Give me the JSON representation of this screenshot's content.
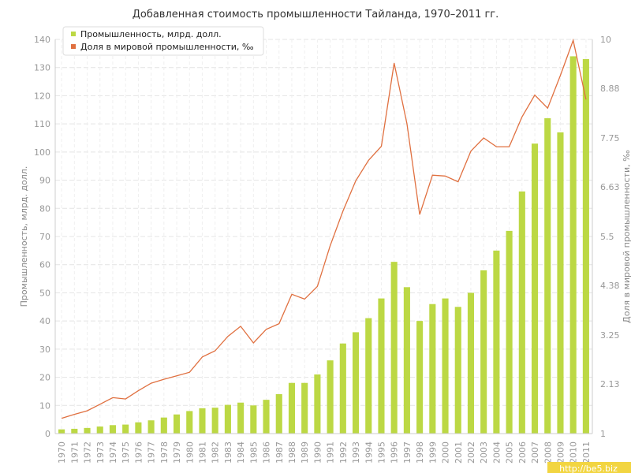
{
  "chart_data": {
    "type": "bar",
    "title": "Добавленная стоимость промышленности Тайланда, 1970–2011 гг.",
    "ylabel_left": "Промышленность, млрд. долл.",
    "ylabel_right": "Доля в мировой промышленности, ‰",
    "ylim_left": [
      0,
      140
    ],
    "yticks_left": [
      "0",
      "10",
      "20",
      "30",
      "40",
      "50",
      "60",
      "70",
      "80",
      "90",
      "100",
      "110",
      "120",
      "130",
      "140"
    ],
    "ylim_right": [
      1,
      10
    ],
    "yticks_right": [
      "1",
      "2.13",
      "3.25",
      "4.38",
      "5.5",
      "6.63",
      "7.75",
      "8.88",
      "10"
    ],
    "grid": true,
    "legend_position": "top-left",
    "categories": [
      "1970",
      "1971",
      "1972",
      "1973",
      "1974",
      "1975",
      "1976",
      "1977",
      "1978",
      "1979",
      "1980",
      "1981",
      "1982",
      "1983",
      "1984",
      "1985",
      "1986",
      "1987",
      "1988",
      "1989",
      "1990",
      "1991",
      "1992",
      "1993",
      "1994",
      "1995",
      "1996",
      "1997",
      "1998",
      "1999",
      "2000",
      "2001",
      "2002",
      "2003",
      "2004",
      "2005",
      "2006",
      "2007",
      "2008",
      "2009",
      "2010",
      "2011"
    ],
    "series": [
      {
        "name": "Промышленность, млрд. долл.",
        "kind": "bar",
        "axis": "left",
        "color": "#bcd844",
        "values": [
          1.5,
          1.7,
          2.0,
          2.5,
          3.0,
          3.2,
          4.0,
          4.7,
          5.7,
          6.8,
          8.0,
          9.0,
          9.2,
          10.2,
          11.0,
          10.0,
          12.0,
          14.0,
          18.0,
          18.0,
          21.0,
          26.0,
          32.0,
          36.0,
          41.0,
          48.0,
          61.0,
          52.0,
          40.0,
          46.0,
          48.0,
          45.0,
          50.0,
          58.0,
          65.0,
          72.0,
          86.0,
          103.0,
          112.0,
          107.0,
          134.0,
          133.0
        ]
      },
      {
        "name": "Доля в мировой промышленности, ‰",
        "kind": "line",
        "axis": "right",
        "color": "#e07040",
        "values": [
          1.35,
          1.44,
          1.52,
          1.67,
          1.82,
          1.79,
          1.98,
          2.15,
          2.24,
          2.32,
          2.4,
          2.75,
          2.89,
          3.22,
          3.45,
          3.07,
          3.38,
          3.51,
          4.18,
          4.07,
          4.36,
          5.29,
          6.08,
          6.77,
          7.24,
          7.56,
          9.46,
          8.08,
          6.0,
          6.9,
          6.88,
          6.75,
          7.45,
          7.75,
          7.55,
          7.55,
          8.23,
          8.73,
          8.43,
          9.18,
          9.98,
          8.63
        ]
      }
    ]
  },
  "watermark": "http://be5.biz"
}
